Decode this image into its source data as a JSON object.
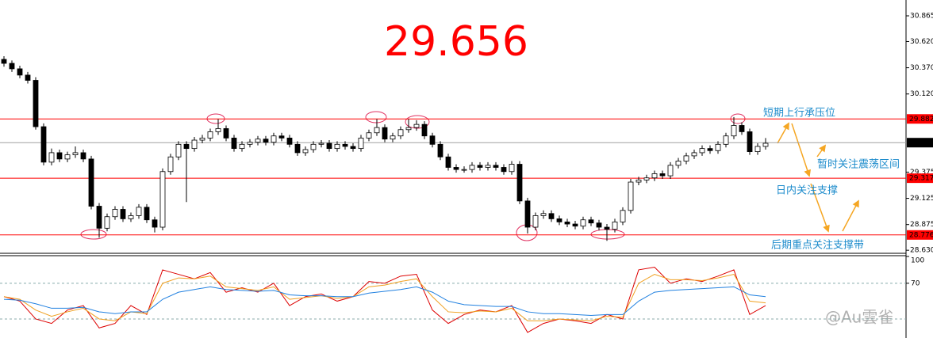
{
  "chart_data": [
    {
      "type": "candlestick",
      "title": "29.656",
      "title_color": "#ff0000",
      "up_color": "#ffffff",
      "down_color": "#000000",
      "edge_color": "#000000",
      "ylim": [
        28.607,
        31.016
      ],
      "yticks": [
        30.865,
        {
          "value": 30.62,
          "label": "30.620"
        },
        {
          "value": 30.37,
          "label": "30.370"
        },
        {
          "value": 30.12,
          "label": "30.120"
        },
        29.375,
        29.125,
        28.875,
        {
          "value": 28.63,
          "label": "28.630"
        }
      ],
      "levels": [
        29.882,
        29.317,
        28.776
      ],
      "level_color": "#ff0000",
      "current_price": 29.656,
      "current_color": "#a0a0a0",
      "annotations": [
        "短期上行承压位",
        "暂时关注震荡区间",
        "日内关注支撑",
        "后期重点关注支撑带"
      ],
      "watermark": "@Au雲雀",
      "ohlc": [
        [
          30.45,
          30.48,
          30.38,
          30.412
        ],
        [
          30.412,
          30.44,
          30.33,
          30.36
        ],
        [
          30.36,
          30.39,
          30.27,
          30.3
        ],
        [
          30.3,
          30.33,
          30.22,
          30.25
        ],
        [
          30.25,
          30.28,
          29.78,
          29.808
        ],
        [
          29.808,
          29.84,
          29.44,
          29.47
        ],
        [
          29.47,
          29.6,
          29.44,
          29.56
        ],
        [
          29.56,
          29.59,
          29.47,
          29.5
        ],
        [
          29.5,
          29.57,
          29.47,
          29.54
        ],
        [
          29.54,
          29.62,
          29.51,
          29.56
        ],
        [
          29.56,
          29.59,
          29.47,
          29.5
        ],
        [
          29.5,
          29.53,
          29.02,
          29.05
        ],
        [
          29.05,
          29.08,
          28.75,
          28.84
        ],
        [
          28.84,
          28.98,
          28.81,
          28.95
        ],
        [
          28.95,
          29.05,
          28.92,
          29.02
        ],
        [
          29.02,
          29.05,
          28.9,
          28.93
        ],
        [
          28.93,
          28.99,
          28.9,
          28.96
        ],
        [
          28.96,
          29.07,
          28.93,
          29.04
        ],
        [
          29.04,
          29.07,
          28.89,
          28.92
        ],
        [
          28.92,
          28.95,
          28.8,
          28.85
        ],
        [
          28.85,
          29.41,
          28.82,
          29.38
        ],
        [
          29.38,
          29.55,
          29.35,
          29.52
        ],
        [
          29.52,
          29.67,
          29.49,
          29.64
        ],
        [
          29.64,
          29.67,
          29.09,
          29.6
        ],
        [
          29.6,
          29.71,
          29.57,
          29.68
        ],
        [
          29.68,
          29.73,
          29.65,
          29.7
        ],
        [
          29.7,
          29.79,
          29.67,
          29.76
        ],
        [
          29.76,
          29.88,
          29.73,
          29.79
        ],
        [
          29.79,
          29.82,
          29.67,
          29.7
        ],
        [
          29.7,
          29.73,
          29.57,
          29.6
        ],
        [
          29.6,
          29.67,
          29.57,
          29.64
        ],
        [
          29.64,
          29.69,
          29.61,
          29.66
        ],
        [
          29.66,
          29.72,
          29.63,
          29.69
        ],
        [
          29.69,
          29.72,
          29.63,
          29.66
        ],
        [
          29.66,
          29.75,
          29.63,
          29.72
        ],
        [
          29.72,
          29.75,
          29.67,
          29.7
        ],
        [
          29.7,
          29.73,
          29.61,
          29.64
        ],
        [
          29.64,
          29.67,
          29.53,
          29.56
        ],
        [
          29.56,
          29.62,
          29.53,
          29.59
        ],
        [
          29.59,
          29.67,
          29.56,
          29.64
        ],
        [
          29.64,
          29.68,
          29.61,
          29.65
        ],
        [
          29.65,
          29.68,
          29.57,
          29.6
        ],
        [
          29.6,
          29.67,
          29.57,
          29.64
        ],
        [
          29.64,
          29.67,
          29.59,
          29.62
        ],
        [
          29.62,
          29.65,
          29.57,
          29.6
        ],
        [
          29.6,
          29.73,
          29.57,
          29.7
        ],
        [
          29.7,
          29.78,
          29.67,
          29.75
        ],
        [
          29.75,
          29.88,
          29.72,
          29.8
        ],
        [
          29.8,
          29.83,
          29.66,
          29.69
        ],
        [
          29.69,
          29.75,
          29.66,
          29.72
        ],
        [
          29.72,
          29.81,
          29.69,
          29.78
        ],
        [
          29.78,
          29.88,
          29.75,
          29.8
        ],
        [
          29.8,
          29.87,
          29.77,
          29.83
        ],
        [
          29.83,
          29.86,
          29.69,
          29.72
        ],
        [
          29.72,
          29.75,
          29.61,
          29.64
        ],
        [
          29.64,
          29.67,
          29.49,
          29.52
        ],
        [
          29.52,
          29.55,
          29.39,
          29.42
        ],
        [
          29.42,
          29.45,
          29.37,
          29.4
        ],
        [
          29.4,
          29.43,
          29.37,
          29.4
        ],
        [
          29.4,
          29.47,
          29.37,
          29.44
        ],
        [
          29.44,
          29.47,
          29.39,
          29.42
        ],
        [
          29.42,
          29.47,
          29.39,
          29.44
        ],
        [
          29.44,
          29.47,
          29.39,
          29.42
        ],
        [
          29.42,
          29.45,
          29.35,
          29.38
        ],
        [
          29.38,
          29.48,
          29.35,
          29.45
        ],
        [
          29.45,
          29.48,
          29.07,
          29.1
        ],
        [
          29.1,
          29.13,
          28.79,
          28.85
        ],
        [
          28.85,
          28.99,
          28.82,
          28.96
        ],
        [
          28.96,
          29.01,
          28.93,
          28.98
        ],
        [
          28.98,
          29.01,
          28.9,
          28.93
        ],
        [
          28.93,
          28.96,
          28.87,
          28.9
        ],
        [
          28.9,
          28.93,
          28.85,
          28.88
        ],
        [
          28.88,
          28.91,
          28.83,
          28.86
        ],
        [
          28.86,
          28.95,
          28.83,
          28.92
        ],
        [
          28.92,
          28.95,
          28.86,
          28.89
        ],
        [
          28.89,
          28.92,
          28.82,
          28.85
        ],
        [
          28.85,
          28.88,
          28.72,
          28.83
        ],
        [
          28.83,
          28.93,
          28.8,
          28.9
        ],
        [
          28.9,
          29.04,
          28.87,
          29.01
        ],
        [
          29.01,
          29.31,
          28.98,
          29.28
        ],
        [
          29.28,
          29.33,
          29.25,
          29.3
        ],
        [
          29.3,
          29.35,
          29.27,
          29.32
        ],
        [
          29.32,
          29.39,
          29.29,
          29.36
        ],
        [
          29.36,
          29.39,
          29.31,
          29.34
        ],
        [
          29.34,
          29.47,
          29.31,
          29.44
        ],
        [
          29.44,
          29.51,
          29.41,
          29.48
        ],
        [
          29.48,
          29.56,
          29.45,
          29.53
        ],
        [
          29.53,
          29.59,
          29.5,
          29.56
        ],
        [
          29.56,
          29.63,
          29.53,
          29.6
        ],
        [
          29.6,
          29.63,
          29.55,
          29.58
        ],
        [
          29.58,
          29.67,
          29.55,
          29.64
        ],
        [
          29.64,
          29.75,
          29.61,
          29.72
        ],
        [
          29.72,
          29.9,
          29.69,
          29.82
        ],
        [
          29.82,
          29.85,
          29.73,
          29.76
        ],
        [
          29.76,
          29.79,
          29.54,
          29.57
        ],
        [
          29.57,
          29.65,
          29.54,
          29.62
        ],
        [
          29.62,
          29.7,
          29.59,
          29.65
        ]
      ]
    },
    {
      "type": "line",
      "ylim": [
        8.7,
        100
      ],
      "yticks": [
        100,
        70
      ],
      "ref_lines": [
        70,
        30
      ],
      "series": [
        {
          "color": "#dd0000",
          "values": [
            55,
            50,
            30,
            25,
            40,
            45,
            20,
            25,
            45,
            35,
            85,
            80,
            75,
            82,
            60,
            65,
            60,
            70,
            45,
            55,
            58,
            50,
            55,
            72,
            70,
            78,
            80,
            40,
            25,
            35,
            40,
            38,
            45,
            15,
            25,
            30,
            28,
            25,
            35,
            30,
            85,
            88,
            70,
            75,
            72,
            78,
            85,
            35,
            45
          ]
        },
        {
          "color": "#f0a020",
          "values": [
            55,
            52,
            40,
            33,
            38,
            42,
            30,
            28,
            38,
            36,
            70,
            76,
            75,
            78,
            66,
            64,
            62,
            66,
            52,
            54,
            56,
            53,
            55,
            66,
            68,
            72,
            75,
            55,
            38,
            37,
            39,
            38,
            42,
            28,
            28,
            30,
            29,
            28,
            33,
            32,
            70,
            80,
            74,
            74,
            73,
            76,
            80,
            50,
            48
          ]
        },
        {
          "color": "#2080e0",
          "values": [
            52,
            51,
            47,
            42,
            42,
            43,
            38,
            36,
            38,
            38,
            52,
            60,
            63,
            66,
            63,
            62,
            61,
            62,
            57,
            56,
            56,
            55,
            55,
            59,
            61,
            63,
            66,
            60,
            50,
            46,
            45,
            44,
            44,
            38,
            36,
            36,
            35,
            34,
            35,
            35,
            50,
            60,
            62,
            63,
            64,
            65,
            66,
            57,
            55
          ]
        }
      ]
    }
  ]
}
